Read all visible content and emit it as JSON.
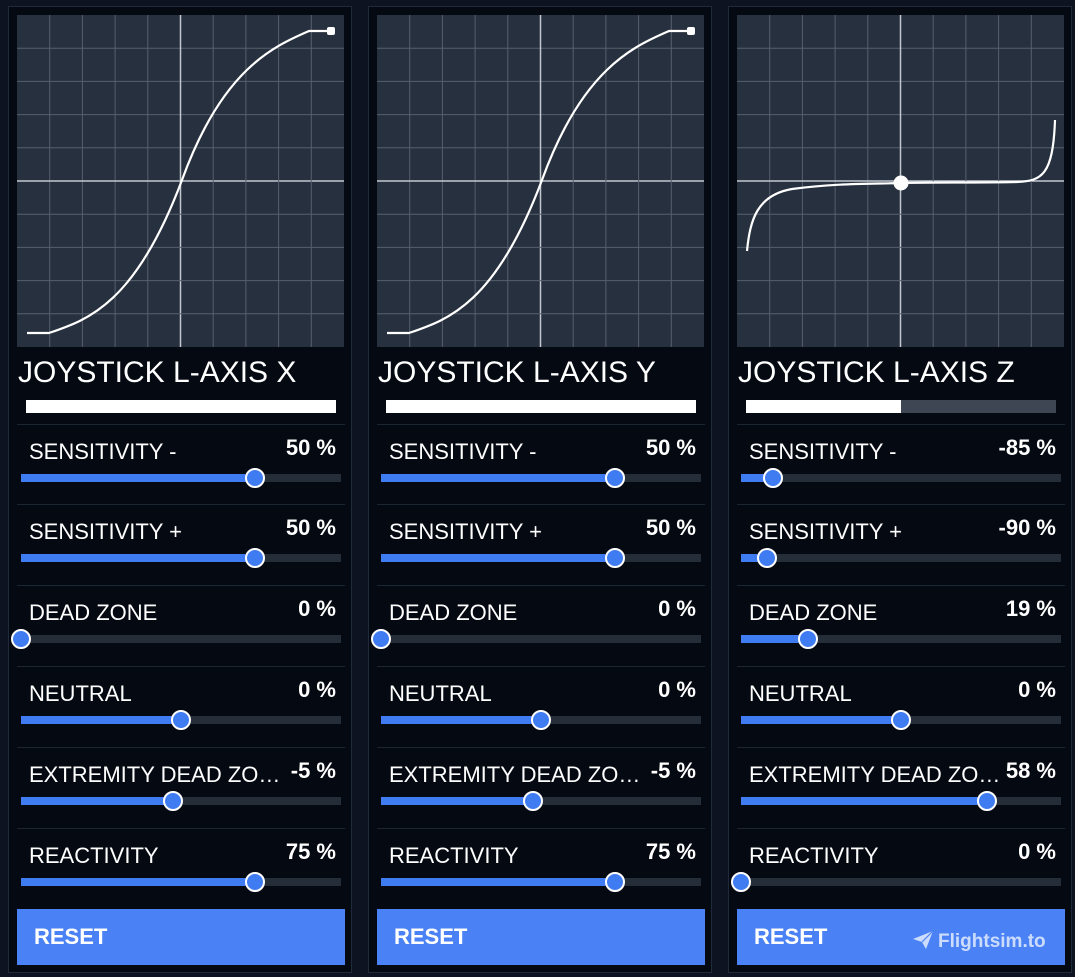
{
  "panels": [
    {
      "title": "JOYSTICK L-AXIS X",
      "meter_fraction": 1.0,
      "curve": "s_curve",
      "settings": [
        {
          "label": "SENSITIVITY -",
          "value": "50 %",
          "fraction": 0.73
        },
        {
          "label": "SENSITIVITY +",
          "value": "50 %",
          "fraction": 0.73
        },
        {
          "label": "DEAD ZONE",
          "value": "0 %",
          "fraction": 0.0
        },
        {
          "label": "NEUTRAL",
          "value": "0 %",
          "fraction": 0.5
        },
        {
          "label": "EXTREMITY DEAD ZONE",
          "value": "-5 %",
          "fraction": 0.475
        },
        {
          "label": "REACTIVITY",
          "value": "75 %",
          "fraction": 0.73
        }
      ],
      "reset_label": "RESET"
    },
    {
      "title": "JOYSTICK L-AXIS Y",
      "meter_fraction": 1.0,
      "curve": "s_curve",
      "settings": [
        {
          "label": "SENSITIVITY -",
          "value": "50 %",
          "fraction": 0.73
        },
        {
          "label": "SENSITIVITY +",
          "value": "50 %",
          "fraction": 0.73
        },
        {
          "label": "DEAD ZONE",
          "value": "0 %",
          "fraction": 0.0
        },
        {
          "label": "NEUTRAL",
          "value": "0 %",
          "fraction": 0.5
        },
        {
          "label": "EXTREMITY DEAD ZONE",
          "value": "-5 %",
          "fraction": 0.475
        },
        {
          "label": "REACTIVITY",
          "value": "75 %",
          "fraction": 0.73
        }
      ],
      "reset_label": "RESET"
    },
    {
      "title": "JOYSTICK L-AXIS Z",
      "meter_fraction": 0.5,
      "curve": "flat_center",
      "settings": [
        {
          "label": "SENSITIVITY -",
          "value": "-85 %",
          "fraction": 0.1
        },
        {
          "label": "SENSITIVITY +",
          "value": "-90 %",
          "fraction": 0.08
        },
        {
          "label": "DEAD ZONE",
          "value": "19 %",
          "fraction": 0.21
        },
        {
          "label": "NEUTRAL",
          "value": "0 %",
          "fraction": 0.5
        },
        {
          "label": "EXTREMITY DEAD ZONE",
          "value": "58 %",
          "fraction": 0.77
        },
        {
          "label": "REACTIVITY",
          "value": "0 %",
          "fraction": 0.0
        }
      ],
      "reset_label": "RESET"
    }
  ],
  "watermark": {
    "text": "Flightsim.to",
    "icon": "paper-plane-icon"
  },
  "colors": {
    "panel_bg": "#050a12",
    "graph_bg": "#27303e",
    "accent": "#4a82f6",
    "slider_fill": "#3f7cf2",
    "track": "#252d39"
  }
}
